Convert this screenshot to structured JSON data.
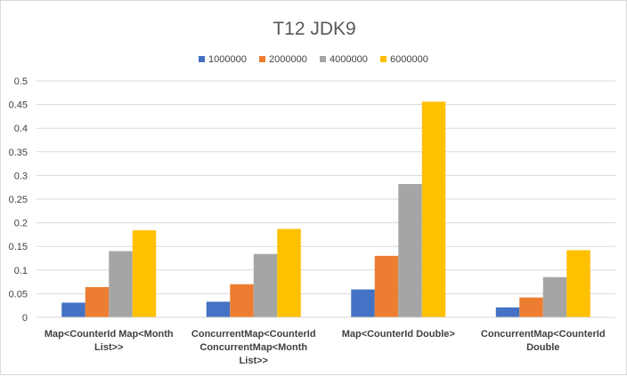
{
  "chart_data": {
    "type": "bar",
    "title": "T12 JDK9",
    "categories": [
      [
        "Map<CounterId Map<Month",
        "List>>"
      ],
      [
        "ConcurrentMap<CounterId",
        "ConcurrentMap<Month",
        "List>>"
      ],
      [
        "Map<CounterId Double>"
      ],
      [
        "ConcurrentMap<CounterId",
        "Double"
      ]
    ],
    "series": [
      {
        "name": "1000000",
        "color": "#4472c4",
        "values": [
          0.031,
          0.033,
          0.059,
          0.021
        ]
      },
      {
        "name": "2000000",
        "color": "#ed7d31",
        "values": [
          0.064,
          0.07,
          0.13,
          0.042
        ]
      },
      {
        "name": "4000000",
        "color": "#a5a5a5",
        "values": [
          0.14,
          0.134,
          0.282,
          0.085
        ]
      },
      {
        "name": "6000000",
        "color": "#ffc000",
        "values": [
          0.184,
          0.187,
          0.456,
          0.142
        ]
      }
    ],
    "ylim": [
      0,
      0.5
    ],
    "yticks": [
      "0",
      "0.05",
      "0.1",
      "0.15",
      "0.2",
      "0.25",
      "0.3",
      "0.35",
      "0.4",
      "0.45",
      "0.5"
    ],
    "grid": true,
    "legend": "top"
  }
}
